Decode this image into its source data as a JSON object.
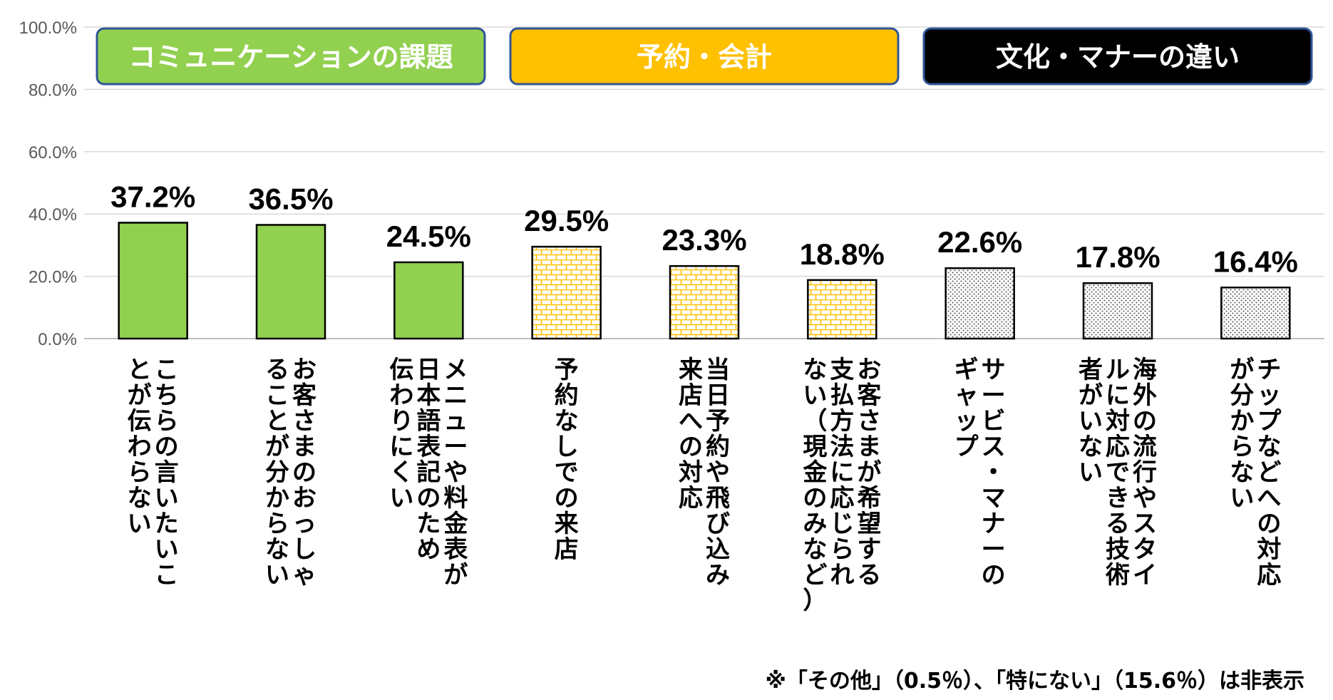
{
  "chart_data": {
    "type": "bar",
    "ylim": [
      0,
      100
    ],
    "yticks": [
      "0.0%",
      "20.0%",
      "40.0%",
      "60.0%",
      "80.0%",
      "100.0%"
    ],
    "grid": true,
    "groups": [
      {
        "label": "コミュニケーションの課題",
        "color": "#92D050",
        "text_color": "#ffffff",
        "pattern": "solid",
        "count": 3
      },
      {
        "label": "予約・会計",
        "color": "#FFC000",
        "text_color": "#ffffff",
        "pattern": "brick",
        "count": 3
      },
      {
        "label": "文化・マナーの違い",
        "color": "#000000",
        "text_color": "#ffffff",
        "pattern": "dots",
        "count": 3
      }
    ],
    "categories": [
      [
        "こちらの言いたいこ",
        "とが伝わらない"
      ],
      [
        "お客さまのおっしゃ",
        "ることが分からない"
      ],
      [
        "メニューや料金表が",
        "日本語表記のため",
        "伝わりにくい"
      ],
      [
        "予約なしでの来店"
      ],
      [
        "当日予約や飛び込み",
        "来店への対応"
      ],
      [
        "お客さまが希望する",
        "支払方法に応じられ",
        "ない（現金のみなど）"
      ],
      [
        "サービス・マナーの",
        "ギャップ"
      ],
      [
        "海外の流行やスタイ",
        "ルに対応できる技術",
        "者がいない"
      ],
      [
        "チップなどへの対応",
        "が分からない"
      ]
    ],
    "values": [
      37.2,
      36.5,
      24.5,
      29.5,
      23.3,
      18.8,
      22.6,
      17.8,
      16.4
    ],
    "value_labels": [
      "37.2%",
      "36.5%",
      "24.5%",
      "29.5%",
      "23.3%",
      "18.8%",
      "22.6%",
      "17.8%",
      "16.4%"
    ]
  },
  "note": "※「その他」（0.5％）、「特にない」（15.6％）は非表示"
}
